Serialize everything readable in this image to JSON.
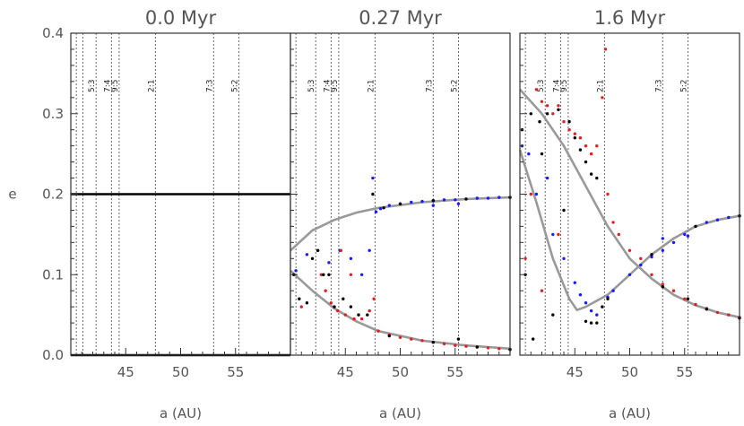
{
  "figure": {
    "ylabel": "e",
    "xlabel": "a (AU)"
  },
  "chart_data": [
    {
      "type": "scatter",
      "title": "0.0 Myr",
      "xlabel": "a (AU)",
      "ylabel": "e",
      "xlim": [
        40,
        60
      ],
      "ylim": [
        0,
        0.4
      ],
      "x_ticks": [
        45,
        50,
        55
      ],
      "y_ticks": [
        0.0,
        0.1,
        0.2,
        0.3,
        0.4
      ],
      "resonances": [
        {
          "label": "",
          "a": 40.5
        },
        {
          "label": "",
          "a": 41.1
        },
        {
          "label": "5:3",
          "a": 42.3
        },
        {
          "label": "7:4",
          "a": 43.7
        },
        {
          "label": "9:5",
          "a": 44.4
        },
        {
          "label": "2:1",
          "a": 47.7
        },
        {
          "label": "7:3",
          "a": 53.0
        },
        {
          "label": "5:2",
          "a": 55.3
        }
      ],
      "series": [
        {
          "color": "#000000",
          "points": [
            [
              40,
              0.2
            ],
            [
              60,
              0.2
            ]
          ]
        },
        {
          "color": "#000000",
          "points": [
            [
              40,
              0.0
            ],
            [
              60,
              0.0
            ]
          ]
        }
      ]
    },
    {
      "type": "scatter",
      "title": "0.27 Myr",
      "xlabel": "a (AU)",
      "ylabel": "e",
      "xlim": [
        40,
        60
      ],
      "ylim": [
        0,
        0.4
      ],
      "x_ticks": [
        45,
        50,
        55
      ],
      "y_ticks": [
        0.0,
        0.1,
        0.2,
        0.3,
        0.4
      ],
      "resonances": [
        {
          "label": "",
          "a": 40.5
        },
        {
          "label": "5:3",
          "a": 42.3
        },
        {
          "label": "7:4",
          "a": 43.7
        },
        {
          "label": "9:5",
          "a": 44.4
        },
        {
          "label": "2:1",
          "a": 47.7
        },
        {
          "label": "7:3",
          "a": 53.0
        },
        {
          "label": "5:2",
          "a": 55.3
        }
      ],
      "curves": [
        {
          "color": "#999999",
          "points": [
            [
              40,
              0.13
            ],
            [
              42,
              0.155
            ],
            [
              44,
              0.168
            ],
            [
              46,
              0.177
            ],
            [
              48,
              0.183
            ],
            [
              52,
              0.19
            ],
            [
              56,
              0.194
            ],
            [
              60,
              0.196
            ]
          ]
        },
        {
          "color": "#999999",
          "points": [
            [
              40,
              0.105
            ],
            [
              42,
              0.08
            ],
            [
              44,
              0.058
            ],
            [
              46,
              0.042
            ],
            [
              48,
              0.03
            ],
            [
              52,
              0.018
            ],
            [
              56,
              0.012
            ],
            [
              60,
              0.008
            ]
          ]
        }
      ],
      "series": [
        {
          "color": "#1a1aff",
          "points": [
            [
              47.8,
              0.178
            ],
            [
              48.2,
              0.182
            ],
            [
              49,
              0.186
            ],
            [
              50,
              0.188
            ],
            [
              51,
              0.19
            ],
            [
              52,
              0.191
            ],
            [
              53,
              0.192
            ],
            [
              54,
              0.193
            ],
            [
              55,
              0.193
            ],
            [
              56,
              0.194
            ],
            [
              57,
              0.195
            ],
            [
              58,
              0.195
            ],
            [
              59,
              0.196
            ],
            [
              60,
              0.196
            ],
            [
              40.5,
              0.105
            ],
            [
              41.5,
              0.125
            ],
            [
              42.5,
              0.13
            ],
            [
              43.5,
              0.115
            ],
            [
              44.5,
              0.13
            ],
            [
              45.5,
              0.12
            ],
            [
              46.5,
              0.1
            ],
            [
              47.2,
              0.13
            ],
            [
              47.5,
              0.22
            ],
            [
              55.3,
              0.188
            ],
            [
              53,
              0.186
            ]
          ]
        },
        {
          "color": "#e02020",
          "points": [
            [
              43.2,
              0.08
            ],
            [
              43.7,
              0.065
            ],
            [
              44.3,
              0.055
            ],
            [
              45,
              0.05
            ],
            [
              45.8,
              0.045
            ],
            [
              46.5,
              0.045
            ],
            [
              47.2,
              0.055
            ],
            [
              47.6,
              0.07
            ],
            [
              48,
              0.03
            ],
            [
              49,
              0.025
            ],
            [
              50,
              0.022
            ],
            [
              51,
              0.02
            ],
            [
              52,
              0.018
            ],
            [
              53,
              0.016
            ],
            [
              54,
              0.014
            ],
            [
              55,
              0.012
            ],
            [
              56,
              0.011
            ],
            [
              57,
              0.01
            ],
            [
              58,
              0.009
            ],
            [
              59,
              0.008
            ],
            [
              60,
              0.007
            ],
            [
              41,
              0.06
            ],
            [
              42.8,
              0.1
            ],
            [
              44.6,
              0.13
            ],
            [
              45.5,
              0.1
            ]
          ]
        },
        {
          "color": "#000000",
          "points": [
            [
              40.3,
              0.1
            ],
            [
              40.8,
              0.07
            ],
            [
              41.5,
              0.065
            ],
            [
              42,
              0.12
            ],
            [
              42.5,
              0.13
            ],
            [
              43,
              0.1
            ],
            [
              43.5,
              0.1
            ],
            [
              44,
              0.06
            ],
            [
              44.8,
              0.07
            ],
            [
              45.5,
              0.06
            ],
            [
              46.2,
              0.05
            ],
            [
              47,
              0.05
            ],
            [
              47.5,
              0.2
            ],
            [
              48.5,
              0.183
            ],
            [
              50,
              0.188
            ],
            [
              53,
              0.192
            ],
            [
              56,
              0.194
            ],
            [
              60,
              0.196
            ],
            [
              49,
              0.024
            ],
            [
              53,
              0.016
            ],
            [
              55.3,
              0.02
            ],
            [
              57,
              0.01
            ],
            [
              60,
              0.007
            ]
          ]
        }
      ]
    },
    {
      "type": "scatter",
      "title": "1.6 Myr",
      "xlabel": "a (AU)",
      "ylabel": "e",
      "xlim": [
        40,
        60
      ],
      "ylim": [
        0,
        0.4
      ],
      "x_ticks": [
        45,
        50,
        55
      ],
      "y_ticks": [
        0.0,
        0.1,
        0.2,
        0.3,
        0.4
      ],
      "resonances": [
        {
          "label": "",
          "a": 40.5
        },
        {
          "label": "5:3",
          "a": 42.3
        },
        {
          "label": "7:4",
          "a": 43.7
        },
        {
          "label": "9:5",
          "a": 44.4
        },
        {
          "label": "2:1",
          "a": 47.7
        },
        {
          "label": "7:3",
          "a": 53.0
        },
        {
          "label": "5:2",
          "a": 55.3
        }
      ],
      "curves": [
        {
          "color": "#999999",
          "points": [
            [
              40,
              0.33
            ],
            [
              42,
              0.3
            ],
            [
              44,
              0.26
            ],
            [
              46,
              0.21
            ],
            [
              48,
              0.16
            ],
            [
              50,
              0.12
            ],
            [
              52,
              0.095
            ],
            [
              54,
              0.075
            ],
            [
              56,
              0.062
            ],
            [
              58,
              0.053
            ],
            [
              60,
              0.047
            ]
          ]
        },
        {
          "color": "#999999",
          "points": [
            [
              40,
              0.255
            ],
            [
              41.5,
              0.19
            ],
            [
              43,
              0.12
            ],
            [
              44.5,
              0.07
            ],
            [
              45.2,
              0.056
            ],
            [
              46,
              0.06
            ],
            [
              48,
              0.075
            ],
            [
              50,
              0.1
            ],
            [
              52,
              0.125
            ],
            [
              54,
              0.145
            ],
            [
              56,
              0.16
            ],
            [
              58,
              0.168
            ],
            [
              60,
              0.173
            ]
          ]
        }
      ],
      "series": [
        {
          "color": "#1a1aff",
          "points": [
            [
              40.2,
              0.26
            ],
            [
              40.8,
              0.25
            ],
            [
              41.5,
              0.2
            ],
            [
              42.5,
              0.22
            ],
            [
              43,
              0.15
            ],
            [
              44,
              0.12
            ],
            [
              45,
              0.09
            ],
            [
              45.5,
              0.075
            ],
            [
              46,
              0.065
            ],
            [
              46.5,
              0.055
            ],
            [
              47,
              0.05
            ],
            [
              48,
              0.072
            ],
            [
              48.5,
              0.08
            ],
            [
              50,
              0.1
            ],
            [
              51,
              0.112
            ],
            [
              52,
              0.122
            ],
            [
              53,
              0.13
            ],
            [
              53,
              0.145
            ],
            [
              54,
              0.14
            ],
            [
              55,
              0.15
            ],
            [
              55.3,
              0.148
            ],
            [
              56,
              0.16
            ],
            [
              57,
              0.165
            ],
            [
              58,
              0.168
            ],
            [
              59,
              0.171
            ],
            [
              60,
              0.173
            ]
          ]
        },
        {
          "color": "#e02020",
          "points": [
            [
              41.5,
              0.33
            ],
            [
              42,
              0.315
            ],
            [
              42.5,
              0.31
            ],
            [
              43,
              0.3
            ],
            [
              43.5,
              0.31
            ],
            [
              44,
              0.29
            ],
            [
              44.5,
              0.28
            ],
            [
              45,
              0.275
            ],
            [
              45.5,
              0.27
            ],
            [
              46,
              0.26
            ],
            [
              46.5,
              0.25
            ],
            [
              47,
              0.26
            ],
            [
              47.5,
              0.32
            ],
            [
              47.8,
              0.38
            ],
            [
              48,
              0.2
            ],
            [
              48.5,
              0.165
            ],
            [
              49,
              0.15
            ],
            [
              50,
              0.13
            ],
            [
              51,
              0.12
            ],
            [
              52,
              0.1
            ],
            [
              53,
              0.088
            ],
            [
              54,
              0.08
            ],
            [
              55,
              0.07
            ],
            [
              56,
              0.063
            ],
            [
              57,
              0.058
            ],
            [
              58,
              0.053
            ],
            [
              59,
              0.05
            ],
            [
              60,
              0.047
            ],
            [
              40.5,
              0.12
            ],
            [
              41,
              0.2
            ],
            [
              42,
              0.08
            ],
            [
              43.5,
              0.15
            ]
          ]
        },
        {
          "color": "#000000",
          "points": [
            [
              40.2,
              0.28
            ],
            [
              41,
              0.3
            ],
            [
              41.8,
              0.29
            ],
            [
              42.5,
              0.3
            ],
            [
              43.5,
              0.305
            ],
            [
              44.5,
              0.29
            ],
            [
              45,
              0.27
            ],
            [
              45.5,
              0.255
            ],
            [
              46,
              0.24
            ],
            [
              46.5,
              0.225
            ],
            [
              47,
              0.22
            ],
            [
              47.5,
              0.06
            ],
            [
              48,
              0.07
            ],
            [
              46,
              0.042
            ],
            [
              46.5,
              0.04
            ],
            [
              47,
              0.04
            ],
            [
              40.5,
              0.1
            ],
            [
              41.2,
              0.02
            ],
            [
              42,
              0.25
            ],
            [
              43,
              0.05
            ],
            [
              44,
              0.18
            ],
            [
              53,
              0.085
            ],
            [
              55.3,
              0.07
            ],
            [
              57,
              0.057
            ],
            [
              60,
              0.046
            ],
            [
              52,
              0.125
            ],
            [
              56,
              0.16
            ],
            [
              60,
              0.173
            ]
          ]
        }
      ]
    }
  ]
}
